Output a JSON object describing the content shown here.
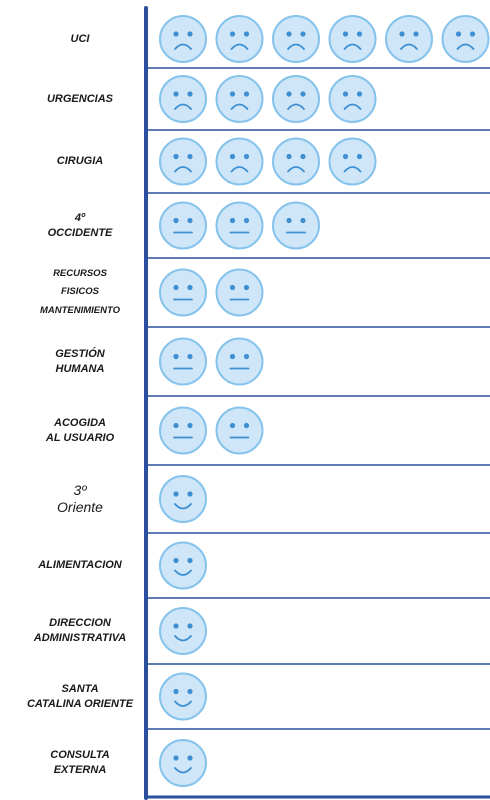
{
  "chart_data": {
    "type": "pictograph",
    "categories": [
      "UCI",
      "URGENCIAS",
      "CIRUGIA",
      "4º\nOCCIDENTE",
      "RECURSOS\nFISICOS\nMANTENIMIENTO",
      "GESTIÓN\nHUMANA",
      "ACOGIDA\nAL USUARIO",
      "3º\nOriente",
      "ALIMENTACION",
      "DIRECCION\nADMINISTRATIVA",
      "SANTA\nCATALINA ORIENTE",
      "CONSULTA\nEXTERNA"
    ],
    "values": [
      6,
      4,
      4,
      3,
      2,
      2,
      2,
      1,
      1,
      1,
      1,
      1
    ],
    "icons": [
      "sad",
      "sad",
      "sad",
      "neutral",
      "neutral",
      "neutral",
      "neutral",
      "happy",
      "happy",
      "happy",
      "happy",
      "happy"
    ],
    "color": "#cfe6f8",
    "axis_color": "#2b4f9e"
  }
}
